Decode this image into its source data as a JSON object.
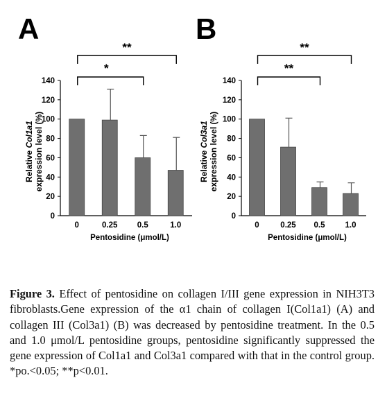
{
  "chart_data": [
    {
      "type": "bar",
      "panel_label": "A",
      "categories": [
        "0",
        "0.25",
        "0.5",
        "1.0"
      ],
      "values": [
        100,
        99,
        60,
        47
      ],
      "errors": [
        0,
        32,
        23,
        34
      ],
      "ylabel_prefix": "Relative ",
      "ylabel_gene": "Col1a1",
      "ylabel_line2": "expression level (%)",
      "xlabel": "Pentosidine (μmol/L)",
      "ylim": [
        0,
        140
      ],
      "yticks": [
        "0",
        "20",
        "40",
        "60",
        "80",
        "100",
        "120",
        "140"
      ],
      "significance": [
        {
          "from": 0,
          "to": 3,
          "label": "**"
        },
        {
          "from": 0,
          "to": 2,
          "label": "*"
        }
      ],
      "bar_color": "#6f6f6f"
    },
    {
      "type": "bar",
      "panel_label": "B",
      "categories": [
        "0",
        "0.25",
        "0.5",
        "1.0"
      ],
      "values": [
        100,
        71,
        29,
        23
      ],
      "errors": [
        0,
        30,
        6,
        11
      ],
      "ylabel_prefix": "Relative ",
      "ylabel_gene": "Col3a1",
      "ylabel_line2": "expression level (%)",
      "xlabel": "Pentosidine (μmol/L)",
      "ylim": [
        0,
        140
      ],
      "yticks": [
        "0",
        "20",
        "40",
        "60",
        "80",
        "100",
        "120",
        "140"
      ],
      "significance": [
        {
          "from": 0,
          "to": 3,
          "label": "**"
        },
        {
          "from": 0,
          "to": 2,
          "label": "**"
        }
      ],
      "bar_color": "#6f6f6f"
    }
  ],
  "caption": {
    "label": "Figure 3.",
    "text": " Effect of pentosidine on collagen I/III gene expression in NIH3T3 fibroblasts.Gene expression of the α1 chain of collagen I(Col1a1) (A) and collagen III (Col3a1) (B) was decreased by pentosidine treatment. In the 0.5 and 1.0 μmol/L pentosidine groups, pentosidine significantly suppressed the gene expression of Col1a1 and Col3a1 compared with that in the control group. *po.<0.05; **p<0.01."
  }
}
